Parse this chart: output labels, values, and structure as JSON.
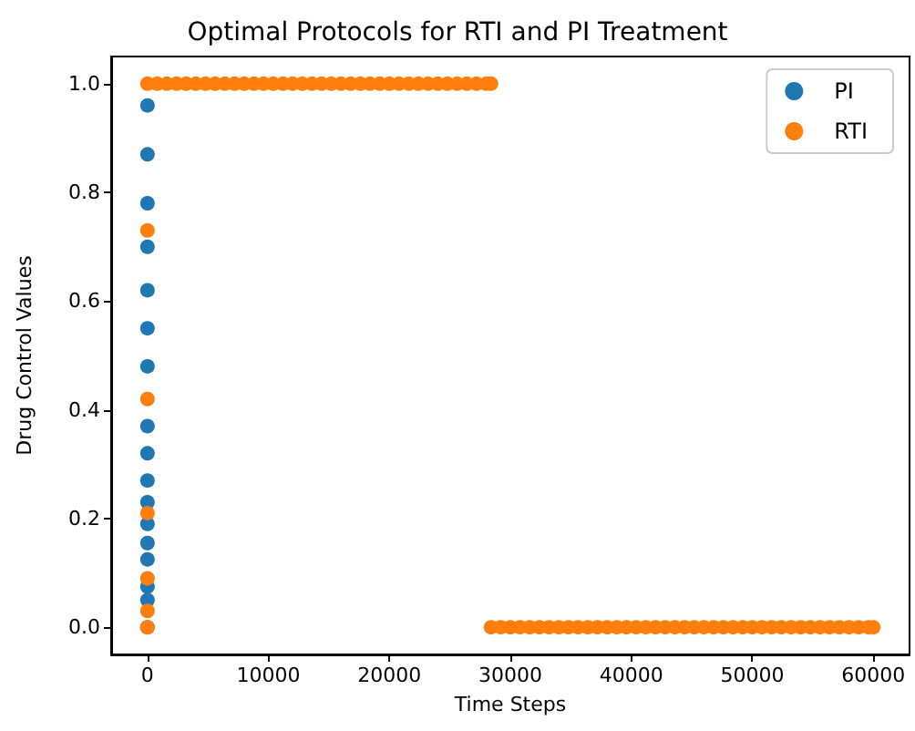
{
  "chart_data": {
    "type": "scatter",
    "title": "Optimal Protocols for RTI and PI Treatment",
    "xlabel": "Time Steps",
    "ylabel": "Drug Control Values",
    "xlim": [
      -3000,
      63000
    ],
    "xticks": [
      0,
      10000,
      20000,
      30000,
      40000,
      50000,
      60000
    ],
    "ylim": [
      -0.05,
      1.05
    ],
    "yticks": [
      {
        "value": 0,
        "label": "0.0"
      },
      {
        "value": 0.2,
        "label": "0.2"
      },
      {
        "value": 0.4,
        "label": "0.4"
      },
      {
        "value": 0.6,
        "label": "0.6"
      },
      {
        "value": 0.8,
        "label": "0.8"
      },
      {
        "value": 1,
        "label": "1.0"
      }
    ],
    "grid": false,
    "legend": "top right",
    "marker": "circle",
    "series": [
      {
        "name": "PI",
        "color": "#1f77b4",
        "x": [
          0,
          0,
          0,
          0,
          0,
          0,
          0,
          0,
          0,
          0,
          0,
          0,
          0,
          0,
          0,
          0,
          0
        ],
        "values": [
          0.96,
          0.87,
          0.78,
          0.7,
          0.62,
          0.55,
          0.48,
          0.37,
          0.32,
          0.27,
          0.23,
          0.19,
          0.155,
          0.125,
          0.075,
          0.05,
          0
        ]
      },
      {
        "name": "RTI",
        "color": "#ff7f0e",
        "x": [
          0,
          0,
          0,
          0,
          0,
          0,
          0,
          800,
          1600,
          2400,
          3200,
          4000,
          4800,
          5600,
          6400,
          7200,
          8000,
          8800,
          9600,
          10400,
          11200,
          12000,
          12800,
          13600,
          14400,
          15200,
          16000,
          16800,
          17600,
          18400,
          19200,
          20000,
          20800,
          21600,
          22400,
          23200,
          24000,
          24800,
          25600,
          26400,
          27200,
          28000,
          28400,
          28400,
          29200,
          30000,
          30800,
          31600,
          32400,
          33200,
          34000,
          34800,
          35600,
          36400,
          37200,
          38000,
          38800,
          39600,
          40400,
          41200,
          42000,
          42800,
          43600,
          44400,
          45200,
          46000,
          46800,
          47600,
          48400,
          49200,
          50000,
          50800,
          51600,
          52400,
          53200,
          54000,
          54800,
          55600,
          56400,
          57200,
          58000,
          58800,
          59600,
          60000
        ],
        "values": [
          0.73,
          0.42,
          0.21,
          0.09,
          0.03,
          0,
          1,
          1,
          1,
          1,
          1,
          1,
          1,
          1,
          1,
          1,
          1,
          1,
          1,
          1,
          1,
          1,
          1,
          1,
          1,
          1,
          1,
          1,
          1,
          1,
          1,
          1,
          1,
          1,
          1,
          1,
          1,
          1,
          1,
          1,
          1,
          1,
          1,
          0,
          0,
          0,
          0,
          0,
          0,
          0,
          0,
          0,
          0,
          0,
          0,
          0,
          0,
          0,
          0,
          0,
          0,
          0,
          0,
          0,
          0,
          0,
          0,
          0,
          0,
          0,
          0,
          0,
          0,
          0,
          0,
          0,
          0,
          0,
          0,
          0,
          0,
          0,
          0,
          0
        ]
      }
    ]
  }
}
